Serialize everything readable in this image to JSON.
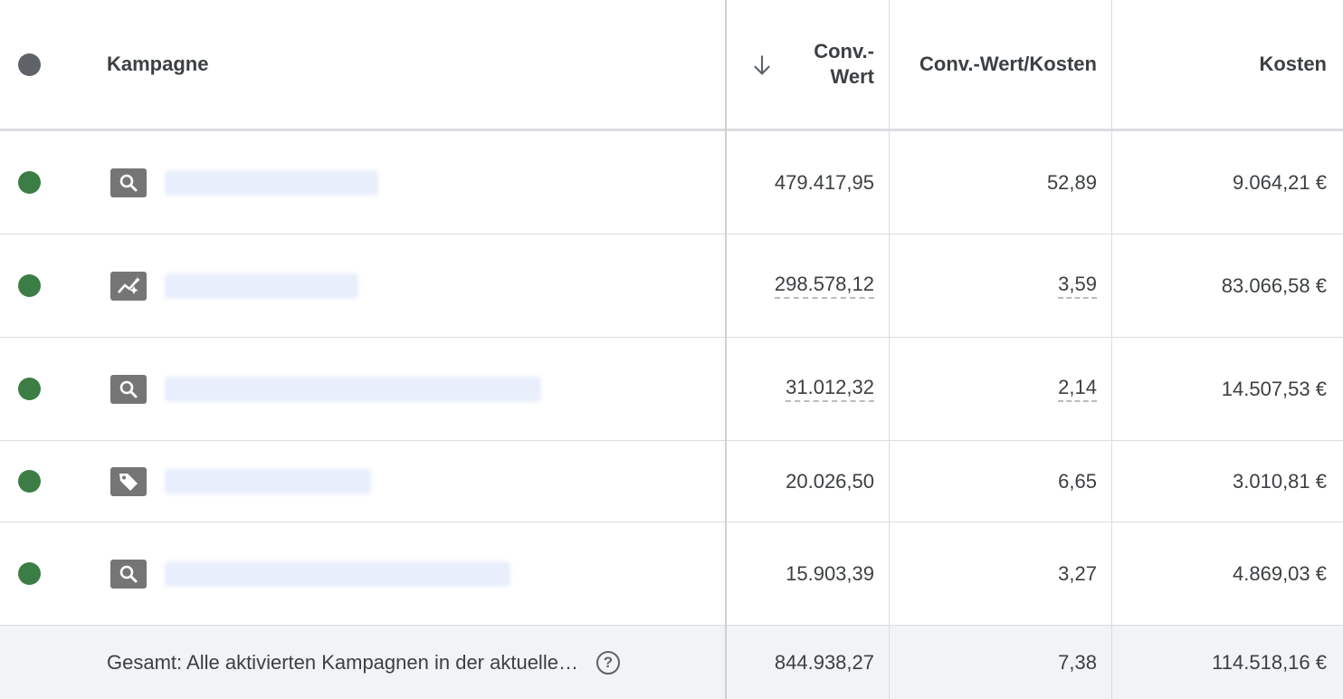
{
  "header": {
    "campaign": "Kampagne",
    "conv_value": "Conv.-\nWert",
    "conv_value_cost": "Conv.-Wert/Kosten",
    "cost": "Kosten",
    "sort_icon": "arrow-down-icon"
  },
  "rows": [
    {
      "status": "enabled",
      "type_icon": "search-icon",
      "conv_value": "479.417,95",
      "conv_value_cost": "52,89",
      "cost": "9.064,21 €"
    },
    {
      "status": "enabled",
      "type_icon": "performance-max-icon",
      "conv_value": "298.578,12",
      "conv_value_cost": "3,59",
      "cost": "83.066,58 €"
    },
    {
      "status": "enabled",
      "type_icon": "search-icon",
      "conv_value": "31.012,32",
      "conv_value_cost": "2,14",
      "cost": "14.507,53 €"
    },
    {
      "status": "enabled",
      "type_icon": "shopping-tag-icon",
      "conv_value": "20.026,50",
      "conv_value_cost": "6,65",
      "cost": "3.010,81 €"
    },
    {
      "status": "enabled",
      "type_icon": "search-icon",
      "conv_value": "15.903,39",
      "conv_value_cost": "3,27",
      "cost": "4.869,03 €"
    }
  ],
  "total": {
    "label": "Gesamt: Alle aktivierten Kampagnen in der aktuelle…",
    "help_icon": "?",
    "conv_value": "844.938,27",
    "conv_value_cost": "7,38",
    "cost": "114.518,16 €"
  },
  "colors": {
    "status_enabled": "#3b7d45",
    "status_header": "#5f6368",
    "grid": "#dadce0",
    "total_bg": "#f1f3f4"
  }
}
